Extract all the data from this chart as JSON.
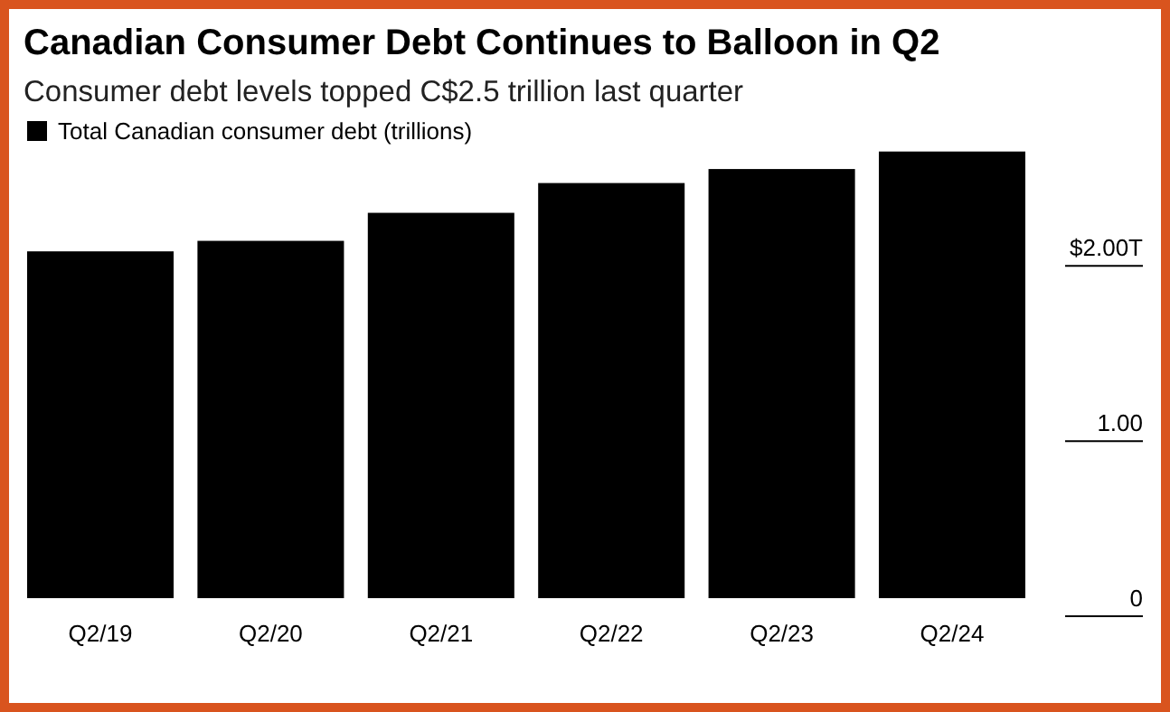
{
  "chart_data": {
    "type": "bar",
    "title": "Canadian Consumer Debt Continues to Balloon in Q2",
    "subtitle": "Consumer debt levels topped C$2.5 trillion last quarter",
    "categories": [
      "Q2/19",
      "Q2/20",
      "Q2/21",
      "Q2/22",
      "Q2/23",
      "Q2/24"
    ],
    "series": [
      {
        "name": "Total Canadian consumer debt (trillions)",
        "color": "#000000",
        "values": [
          1.98,
          2.04,
          2.2,
          2.37,
          2.45,
          2.55
        ]
      }
    ],
    "ylim": [
      0,
      2.6
    ],
    "yticks": [
      0,
      {
        "value": 1,
        "label": "1.00"
      },
      {
        "value": 2,
        "label": "$2.00T"
      }
    ],
    "legend": "top left",
    "grid": false
  }
}
